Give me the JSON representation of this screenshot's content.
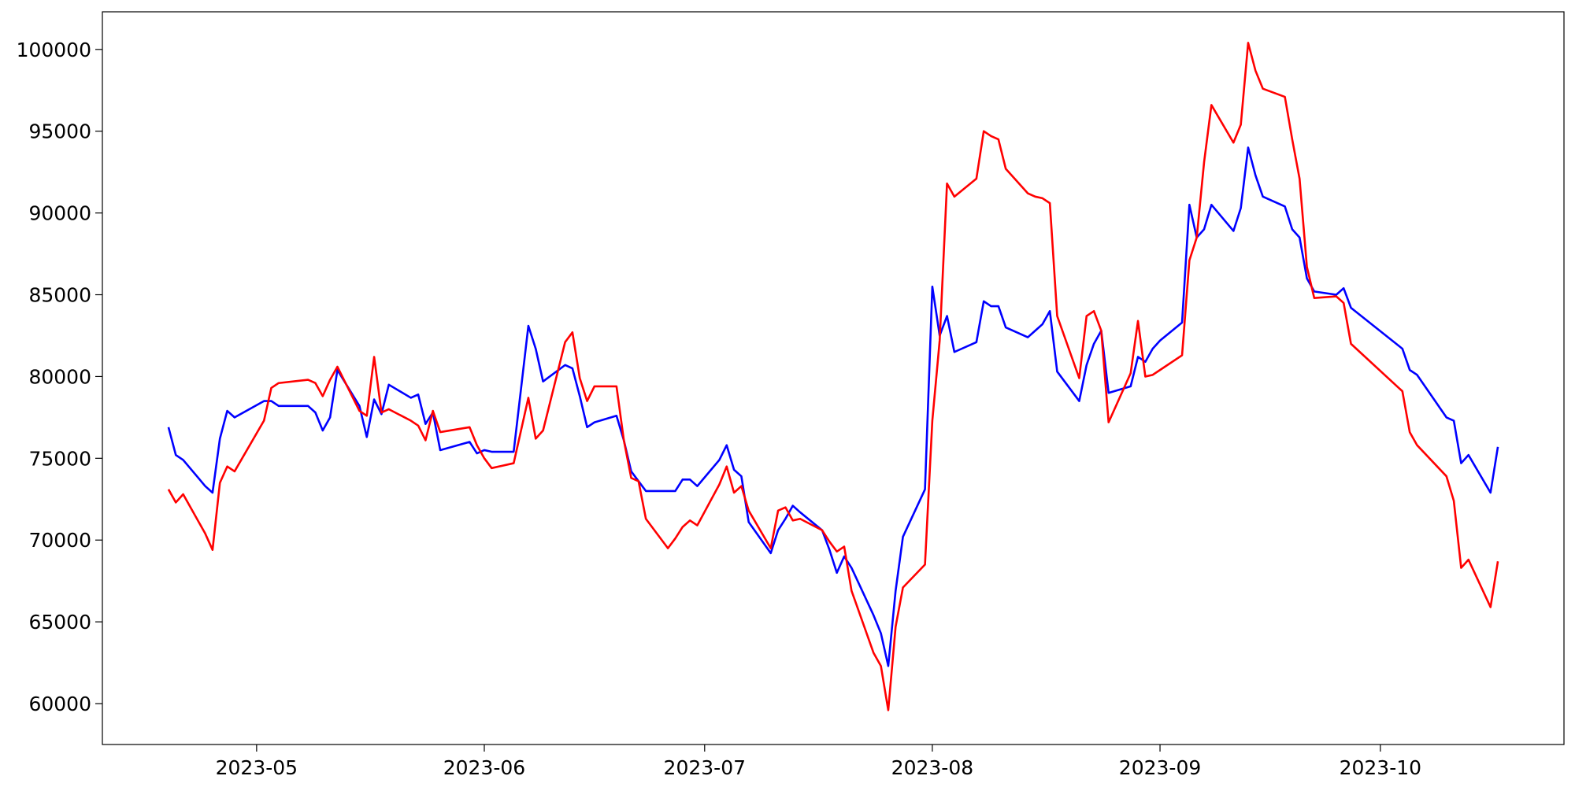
{
  "chart_data": {
    "type": "line",
    "x": [
      "2023-04-19",
      "2023-04-20",
      "2023-04-21",
      "2023-04-24",
      "2023-04-25",
      "2023-04-26",
      "2023-04-27",
      "2023-04-28",
      "2023-05-02",
      "2023-05-03",
      "2023-05-04",
      "2023-05-08",
      "2023-05-09",
      "2023-05-10",
      "2023-05-11",
      "2023-05-12",
      "2023-05-15",
      "2023-05-16",
      "2023-05-17",
      "2023-05-18",
      "2023-05-19",
      "2023-05-22",
      "2023-05-23",
      "2023-05-24",
      "2023-05-25",
      "2023-05-26",
      "2023-05-30",
      "2023-05-31",
      "2023-06-01",
      "2023-06-02",
      "2023-06-05",
      "2023-06-07",
      "2023-06-08",
      "2023-06-09",
      "2023-06-12",
      "2023-06-13",
      "2023-06-14",
      "2023-06-15",
      "2023-06-16",
      "2023-06-19",
      "2023-06-20",
      "2023-06-21",
      "2023-06-22",
      "2023-06-23",
      "2023-06-26",
      "2023-06-27",
      "2023-06-28",
      "2023-06-29",
      "2023-06-30",
      "2023-07-03",
      "2023-07-04",
      "2023-07-05",
      "2023-07-06",
      "2023-07-07",
      "2023-07-10",
      "2023-07-11",
      "2023-07-12",
      "2023-07-13",
      "2023-07-14",
      "2023-07-17",
      "2023-07-18",
      "2023-07-19",
      "2023-07-20",
      "2023-07-21",
      "2023-07-24",
      "2023-07-25",
      "2023-07-26",
      "2023-07-27",
      "2023-07-28",
      "2023-07-31",
      "2023-08-01",
      "2023-08-02",
      "2023-08-03",
      "2023-08-04",
      "2023-08-07",
      "2023-08-08",
      "2023-08-09",
      "2023-08-10",
      "2023-08-11",
      "2023-08-14",
      "2023-08-15",
      "2023-08-16",
      "2023-08-17",
      "2023-08-18",
      "2023-08-21",
      "2023-08-22",
      "2023-08-23",
      "2023-08-24",
      "2023-08-25",
      "2023-08-28",
      "2023-08-29",
      "2023-08-30",
      "2023-08-31",
      "2023-09-01",
      "2023-09-04",
      "2023-09-05",
      "2023-09-06",
      "2023-09-07",
      "2023-09-08",
      "2023-09-11",
      "2023-09-12",
      "2023-09-13",
      "2023-09-14",
      "2023-09-15",
      "2023-09-18",
      "2023-09-19",
      "2023-09-20",
      "2023-09-21",
      "2023-09-22",
      "2023-09-25",
      "2023-09-26",
      "2023-09-27",
      "2023-10-04",
      "2023-10-05",
      "2023-10-06",
      "2023-10-10",
      "2023-10-11",
      "2023-10-12",
      "2023-10-13",
      "2023-10-16",
      "2023-10-17"
    ],
    "series": [
      {
        "color": "#0000ff",
        "values": [
          76900,
          75200,
          74900,
          73300,
          72900,
          76200,
          77900,
          77500,
          78500,
          78500,
          78200,
          78200,
          77800,
          76700,
          77500,
          80400,
          78200,
          76300,
          78600,
          77700,
          79500,
          78700,
          78900,
          77100,
          77800,
          75500,
          76000,
          75300,
          75500,
          75400,
          75400,
          83100,
          81700,
          79700,
          80700,
          80500,
          78800,
          76900,
          77200,
          77600,
          76100,
          74200,
          73600,
          73000,
          73000,
          73000,
          73700,
          73700,
          73300,
          74900,
          75800,
          74300,
          73900,
          71100,
          69200,
          70600,
          71300,
          72100,
          71700,
          70600,
          69400,
          68000,
          69000,
          68300,
          65400,
          64300,
          62300,
          66900,
          70200,
          73100,
          85500,
          82500,
          83700,
          81500,
          82100,
          84600,
          84300,
          84300,
          83000,
          82400,
          82800,
          83200,
          84000,
          80300,
          78500,
          80700,
          82000,
          82800,
          79000,
          79400,
          81200,
          80900,
          81700,
          82200,
          83300,
          90500,
          88500,
          89000,
          90500,
          88900,
          90300,
          94000,
          92300,
          91000,
          90400,
          89000,
          88500,
          86000,
          85200,
          85000,
          85400,
          84200,
          81700,
          80400,
          80100,
          77500,
          77300,
          74700,
          75200,
          72900,
          75700
        ]
      },
      {
        "color": "#ff0000",
        "values": [
          73100,
          72300,
          72800,
          70400,
          69400,
          73500,
          74500,
          74200,
          77300,
          79300,
          79600,
          79800,
          79600,
          78800,
          79800,
          80600,
          77900,
          77600,
          81200,
          77800,
          78000,
          77300,
          77000,
          76100,
          77900,
          76600,
          76900,
          75800,
          75000,
          74400,
          74700,
          78700,
          76200,
          76700,
          82100,
          82700,
          79900,
          78500,
          79400,
          79400,
          76100,
          73800,
          73600,
          71300,
          69500,
          70100,
          70800,
          71200,
          70900,
          73400,
          74500,
          72900,
          73300,
          71800,
          69500,
          71800,
          72000,
          71200,
          71300,
          70600,
          69900,
          69300,
          69600,
          66900,
          63100,
          62300,
          59600,
          64700,
          67100,
          68500,
          77300,
          82200,
          91800,
          91000,
          92100,
          95000,
          94700,
          94500,
          92700,
          91200,
          91000,
          90900,
          90600,
          83700,
          79900,
          83700,
          84000,
          82800,
          77200,
          80200,
          83400,
          80000,
          80100,
          80400,
          81300,
          87100,
          88500,
          93100,
          96600,
          94300,
          95400,
          100400,
          98700,
          97600,
          97100,
          94500,
          92100,
          86700,
          84800,
          84900,
          84500,
          82000,
          79100,
          76600,
          75800,
          73900,
          72400,
          68300,
          68800,
          65900,
          68700
        ]
      }
    ],
    "xlim": [
      "2023-04-10",
      "2023-10-26"
    ],
    "xticks": [
      "2023-05",
      "2023-06",
      "2023-07",
      "2023-08",
      "2023-09",
      "2023-10"
    ],
    "ylim": [
      57500,
      102300
    ],
    "yticks": [
      60000,
      65000,
      70000,
      75000,
      80000,
      85000,
      90000,
      95000,
      100000
    ],
    "grid": false
  }
}
